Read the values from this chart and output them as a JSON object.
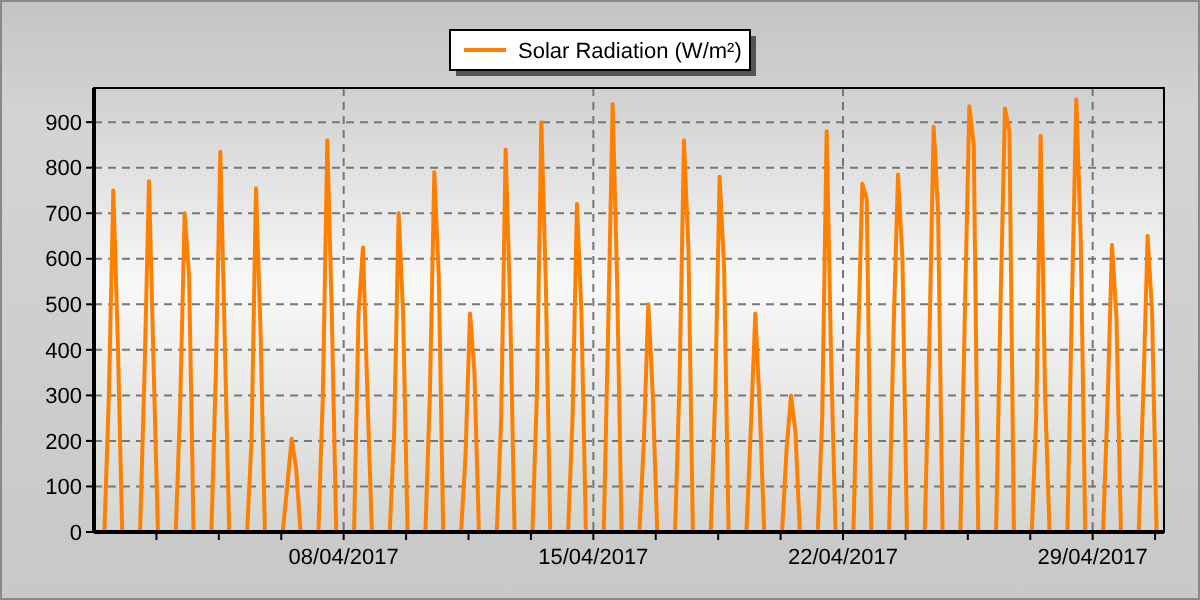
{
  "chart_data": {
    "type": "line",
    "legend": "top",
    "x": [
      "2017-04-01T00:00",
      "2017-04-01T07:00",
      "2017-04-01T10:00",
      "2017-04-01T13:00",
      "2017-04-01T16:00",
      "2017-04-01T19:00",
      "2017-04-02T07:00",
      "2017-04-02T10:00",
      "2017-04-02T13:00",
      "2017-04-02T16:00",
      "2017-04-02T19:00",
      "2017-04-03T07:00",
      "2017-04-03T10:00",
      "2017-04-03T13:00",
      "2017-04-03T16:00",
      "2017-04-03T19:00",
      "2017-04-04T07:00",
      "2017-04-04T10:00",
      "2017-04-04T13:00",
      "2017-04-04T16:00",
      "2017-04-04T19:00",
      "2017-04-05T07:00",
      "2017-04-05T10:00",
      "2017-04-05T13:00",
      "2017-04-05T16:00",
      "2017-04-05T19:00",
      "2017-04-06T07:00",
      "2017-04-06T10:00",
      "2017-04-06T13:00",
      "2017-04-06T16:00",
      "2017-04-06T19:00",
      "2017-04-07T07:00",
      "2017-04-07T10:00",
      "2017-04-07T13:00",
      "2017-04-07T16:00",
      "2017-04-07T19:00",
      "2017-04-08T07:00",
      "2017-04-08T10:00",
      "2017-04-08T13:00",
      "2017-04-08T16:00",
      "2017-04-08T19:00",
      "2017-04-09T07:00",
      "2017-04-09T10:00",
      "2017-04-09T13:00",
      "2017-04-09T16:00",
      "2017-04-09T19:00",
      "2017-04-10T07:00",
      "2017-04-10T10:00",
      "2017-04-10T13:00",
      "2017-04-10T16:00",
      "2017-04-10T19:00",
      "2017-04-11T07:00",
      "2017-04-11T10:00",
      "2017-04-11T13:00",
      "2017-04-11T16:00",
      "2017-04-11T19:00",
      "2017-04-12T07:00",
      "2017-04-12T10:00",
      "2017-04-12T13:00",
      "2017-04-12T16:00",
      "2017-04-12T19:00",
      "2017-04-13T07:00",
      "2017-04-13T10:00",
      "2017-04-13T13:00",
      "2017-04-13T16:00",
      "2017-04-13T19:00",
      "2017-04-14T07:00",
      "2017-04-14T10:00",
      "2017-04-14T13:00",
      "2017-04-14T16:00",
      "2017-04-14T19:00",
      "2017-04-15T07:00",
      "2017-04-15T10:00",
      "2017-04-15T13:00",
      "2017-04-15T16:00",
      "2017-04-15T19:00",
      "2017-04-16T07:00",
      "2017-04-16T10:00",
      "2017-04-16T13:00",
      "2017-04-16T16:00",
      "2017-04-16T19:00",
      "2017-04-17T07:00",
      "2017-04-17T10:00",
      "2017-04-17T13:00",
      "2017-04-17T16:00",
      "2017-04-17T19:00",
      "2017-04-18T07:00",
      "2017-04-18T10:00",
      "2017-04-18T13:00",
      "2017-04-18T16:00",
      "2017-04-18T19:00",
      "2017-04-19T07:00",
      "2017-04-19T10:00",
      "2017-04-19T13:00",
      "2017-04-19T16:00",
      "2017-04-19T19:00",
      "2017-04-20T07:00",
      "2017-04-20T10:00",
      "2017-04-20T13:00",
      "2017-04-20T16:00",
      "2017-04-20T19:00",
      "2017-04-21T07:00",
      "2017-04-21T10:00",
      "2017-04-21T13:00",
      "2017-04-21T16:00",
      "2017-04-21T19:00",
      "2017-04-22T07:00",
      "2017-04-22T10:00",
      "2017-04-22T13:00",
      "2017-04-22T16:00",
      "2017-04-22T19:00",
      "2017-04-23T07:00",
      "2017-04-23T10:00",
      "2017-04-23T13:00",
      "2017-04-23T16:00",
      "2017-04-23T19:00",
      "2017-04-24T07:00",
      "2017-04-24T10:00",
      "2017-04-24T13:00",
      "2017-04-24T16:00",
      "2017-04-24T19:00",
      "2017-04-25T07:00",
      "2017-04-25T10:00",
      "2017-04-25T13:00",
      "2017-04-25T16:00",
      "2017-04-25T19:00",
      "2017-04-26T07:00",
      "2017-04-26T10:00",
      "2017-04-26T13:00",
      "2017-04-26T16:00",
      "2017-04-26T19:00",
      "2017-04-27T07:00",
      "2017-04-27T10:00",
      "2017-04-27T13:00",
      "2017-04-27T16:00",
      "2017-04-27T19:00",
      "2017-04-28T07:00",
      "2017-04-28T10:00",
      "2017-04-28T13:00",
      "2017-04-28T16:00",
      "2017-04-28T19:00",
      "2017-04-29T07:00",
      "2017-04-29T10:00",
      "2017-04-29T13:00",
      "2017-04-29T16:00",
      "2017-04-29T19:00",
      "2017-04-30T07:00",
      "2017-04-30T10:00",
      "2017-04-30T13:00",
      "2017-04-30T16:00",
      "2017-04-30T19:00",
      "2017-05-01T00:00"
    ],
    "series": [
      {
        "name": "Solar Radiation (W/m²)",
        "color": "#ff8000",
        "values": [
          0,
          0,
          300,
          750,
          420,
          0,
          0,
          350,
          770,
          380,
          0,
          0,
          280,
          700,
          560,
          0,
          0,
          350,
          835,
          420,
          0,
          0,
          200,
          755,
          450,
          0,
          0,
          100,
          205,
          140,
          0,
          0,
          300,
          860,
          480,
          0,
          0,
          480,
          625,
          300,
          0,
          0,
          220,
          700,
          480,
          0,
          0,
          300,
          790,
          560,
          0,
          0,
          170,
          480,
          350,
          0,
          0,
          250,
          840,
          500,
          0,
          0,
          300,
          900,
          550,
          0,
          0,
          250,
          720,
          480,
          0,
          0,
          450,
          940,
          550,
          0,
          0,
          200,
          500,
          300,
          0,
          0,
          330,
          860,
          620,
          0,
          0,
          300,
          780,
          580,
          0,
          0,
          230,
          480,
          270,
          0,
          0,
          180,
          300,
          220,
          0,
          0,
          250,
          880,
          380,
          0,
          0,
          400,
          765,
          730,
          0,
          0,
          440,
          785,
          600,
          0,
          0,
          400,
          890,
          700,
          0,
          0,
          480,
          935,
          850,
          0,
          0,
          500,
          930,
          880,
          0,
          0,
          250,
          870,
          300,
          0,
          0,
          500,
          950,
          640,
          0,
          0,
          280,
          630,
          470,
          0,
          0,
          300,
          650,
          480,
          0,
          0
        ]
      }
    ],
    "xlim": [
      "2017-04-01T00:00",
      "2017-05-01T00:00"
    ],
    "xticks": [
      {
        "value": "2017-04-02T18:00",
        "label": null
      },
      {
        "value": "2017-04-04T12:00",
        "label": null
      },
      {
        "value": "2017-04-06T06:00",
        "label": null
      },
      {
        "value": "2017-04-08T00:00",
        "label": "08/04/2017"
      },
      {
        "value": "2017-04-09T18:00",
        "label": null
      },
      {
        "value": "2017-04-11T12:00",
        "label": null
      },
      {
        "value": "2017-04-13T06:00",
        "label": null
      },
      {
        "value": "2017-04-15T00:00",
        "label": "15/04/2017"
      },
      {
        "value": "2017-04-16T18:00",
        "label": null
      },
      {
        "value": "2017-04-18T12:00",
        "label": null
      },
      {
        "value": "2017-04-20T06:00",
        "label": null
      },
      {
        "value": "2017-04-22T00:00",
        "label": "22/04/2017"
      },
      {
        "value": "2017-04-23T18:00",
        "label": null
      },
      {
        "value": "2017-04-25T12:00",
        "label": null
      },
      {
        "value": "2017-04-27T06:00",
        "label": null
      },
      {
        "value": "2017-04-29T00:00",
        "label": "29/04/2017"
      },
      {
        "value": "2017-04-30T18:00",
        "label": null
      }
    ],
    "ylim": [
      0,
      975
    ],
    "yticks": [
      0,
      100,
      200,
      300,
      400,
      500,
      600,
      700,
      800,
      900
    ],
    "grid": true
  }
}
